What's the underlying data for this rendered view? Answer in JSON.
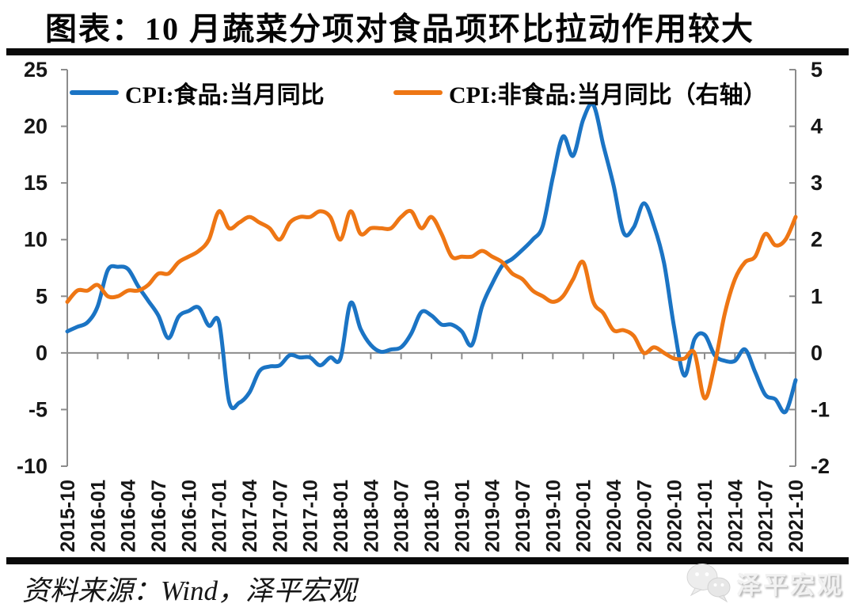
{
  "page": {
    "title": "图表：10 月蔬菜分项对食品项环比拉动作用较大",
    "source_note": "资料来源：Wind，泽平宏观",
    "watermark": "泽平宏观"
  },
  "chart_data": {
    "type": "line",
    "title": "图表：10 月蔬菜分项对食品项环比拉动作用较大",
    "legend_position": "top",
    "grid": "zero-line-only",
    "axis_color": "#8c8c8c",
    "x_start": "2015-10",
    "x_end": "2021-10",
    "x_frequency": "monthly",
    "x_tick_labels": [
      "2015-10",
      "2016-01",
      "2016-04",
      "2016-07",
      "2016-10",
      "2017-01",
      "2017-04",
      "2017-07",
      "2017-10",
      "2018-01",
      "2018-04",
      "2018-07",
      "2018-10",
      "2019-01",
      "2019-04",
      "2019-07",
      "2019-10",
      "2020-01",
      "2020-04",
      "2020-07",
      "2020-10",
      "2021-01",
      "2021-04",
      "2021-07",
      "2021-10"
    ],
    "left_axis": {
      "range": [
        -10,
        25
      ],
      "tick_labels": [
        "25",
        "20",
        "15",
        "10",
        "5",
        "0",
        "-5",
        "-10"
      ]
    },
    "right_axis": {
      "range": [
        -2,
        5
      ],
      "tick_labels": [
        "5",
        "4",
        "3",
        "2",
        "1",
        "0",
        "-1",
        "-2"
      ]
    },
    "series": [
      {
        "name": "CPI:食品:当月同比",
        "axis": "left",
        "color": "#1B74C4",
        "values": [
          1.9,
          2.3,
          2.7,
          4.1,
          7.3,
          7.6,
          7.4,
          5.9,
          4.6,
          3.3,
          1.3,
          3.2,
          3.7,
          4.0,
          2.4,
          2.7,
          -4.3,
          -4.4,
          -3.5,
          -1.6,
          -1.2,
          -1.1,
          -0.2,
          -0.4,
          -0.4,
          -1.1,
          -0.4,
          -0.5,
          4.4,
          2.1,
          0.7,
          0.1,
          0.3,
          0.5,
          1.7,
          3.6,
          3.3,
          2.5,
          2.5,
          1.9,
          0.7,
          4.1,
          6.1,
          7.7,
          8.3,
          9.1,
          10.0,
          11.2,
          15.5,
          19.1,
          17.4,
          20.6,
          21.9,
          18.3,
          14.8,
          10.6,
          11.1,
          13.2,
          11.2,
          7.9,
          2.2,
          -2.0,
          1.2,
          1.6,
          -0.2,
          -0.7,
          -0.7,
          0.3,
          -1.7,
          -3.7,
          -4.1,
          -5.2,
          -2.4
        ]
      },
      {
        "name": "CPI:非食品:当月同比（右轴）",
        "axis": "right",
        "color": "#EE7614",
        "values": [
          0.9,
          1.1,
          1.1,
          1.2,
          1.0,
          1.0,
          1.1,
          1.1,
          1.2,
          1.4,
          1.4,
          1.6,
          1.7,
          1.8,
          2.0,
          2.5,
          2.2,
          2.3,
          2.4,
          2.3,
          2.2,
          2.0,
          2.3,
          2.4,
          2.4,
          2.5,
          2.4,
          2.0,
          2.5,
          2.1,
          2.2,
          2.2,
          2.2,
          2.4,
          2.5,
          2.2,
          2.4,
          2.1,
          1.7,
          1.7,
          1.7,
          1.8,
          1.7,
          1.6,
          1.4,
          1.3,
          1.1,
          1.0,
          0.9,
          1.0,
          1.3,
          1.6,
          0.9,
          0.7,
          0.4,
          0.4,
          0.3,
          0.0,
          0.1,
          0.0,
          -0.1,
          -0.1,
          0.0,
          -0.8,
          -0.2,
          0.7,
          1.3,
          1.6,
          1.7,
          2.1,
          1.9,
          2.0,
          2.4
        ]
      }
    ]
  }
}
